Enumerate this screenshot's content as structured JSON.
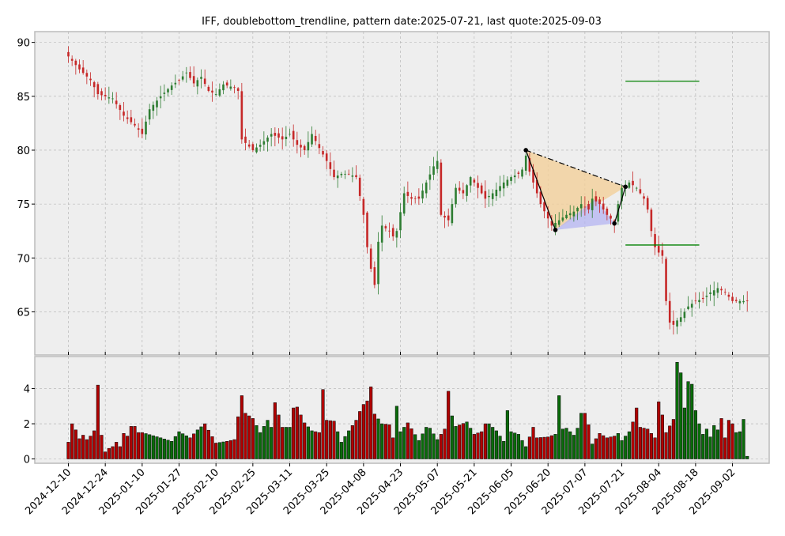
{
  "chart_data": {
    "type": "candlestick",
    "title": "IFF, doublebottom_trendline, pattern date:2025-07-21, last quote:2025-09-03",
    "colors": {
      "up": "#2e7d32",
      "down": "#c62828",
      "up_bar": "#0a6b0a",
      "down_bar": "#b00000",
      "panel_bg": "#eeeeee",
      "pattern_fill_1": "#f2cf9a",
      "pattern_fill_2": "#b4b4f2",
      "level_line": "#008000"
    },
    "price_axis": {
      "ylim": [
        61,
        91
      ],
      "ticks": [
        65,
        70,
        75,
        80,
        85,
        90
      ]
    },
    "volume_axis": {
      "ylim": [
        0,
        5.6
      ],
      "ticks": [
        0,
        2,
        4
      ]
    },
    "x_ticks": [
      "2024-12-10",
      "2024-12-24",
      "2025-01-10",
      "2025-01-27",
      "2025-02-10",
      "2025-02-25",
      "2025-03-11",
      "2025-03-25",
      "2025-04-08",
      "2025-04-23",
      "2025-05-07",
      "2025-05-21",
      "2025-06-05",
      "2025-06-20",
      "2025-07-07",
      "2025-07-21",
      "2025-08-04",
      "2025-08-18",
      "2025-09-02"
    ],
    "x_tick_index": [
      0,
      10,
      20,
      30,
      40,
      50,
      60,
      70,
      80,
      90,
      100,
      110,
      120,
      130,
      140,
      150,
      160,
      170,
      180
    ],
    "close_waypoints": [
      [
        0,
        88.7
      ],
      [
        3,
        87.5
      ],
      [
        6,
        86.5
      ],
      [
        8,
        85.2
      ],
      [
        10,
        85.0
      ],
      [
        12,
        84.8
      ],
      [
        15,
        83.2
      ],
      [
        18,
        82.3
      ],
      [
        20,
        81.5
      ],
      [
        22,
        83.8
      ],
      [
        25,
        85.0
      ],
      [
        28,
        86.0
      ],
      [
        30,
        86.5
      ],
      [
        32,
        87.2
      ],
      [
        34,
        86.2
      ],
      [
        36,
        86.8
      ],
      [
        38,
        85.5
      ],
      [
        40,
        85.2
      ],
      [
        42,
        86.1
      ],
      [
        45,
        85.8
      ],
      [
        46,
        85.5
      ],
      [
        47,
        81.0
      ],
      [
        50,
        80.0
      ],
      [
        52,
        80.5
      ],
      [
        55,
        81.5
      ],
      [
        58,
        81.0
      ],
      [
        60,
        81.5
      ],
      [
        62,
        80.5
      ],
      [
        64,
        80.0
      ],
      [
        66,
        81.5
      ],
      [
        68,
        80.2
      ],
      [
        70,
        79.0
      ],
      [
        72,
        77.5
      ],
      [
        74,
        77.8
      ],
      [
        76,
        77.8
      ],
      [
        78,
        77.5
      ],
      [
        80,
        74.0
      ],
      [
        81,
        71.0
      ],
      [
        82,
        69.0
      ],
      [
        83,
        67.5
      ],
      [
        84,
        71.5
      ],
      [
        85,
        73.0
      ],
      [
        87,
        72.5
      ],
      [
        88,
        72.0
      ],
      [
        89,
        72.5
      ],
      [
        91,
        76.0
      ],
      [
        93,
        75.5
      ],
      [
        95,
        75.5
      ],
      [
        97,
        77.0
      ],
      [
        99,
        78.5
      ],
      [
        100,
        79.0
      ],
      [
        101,
        74.0
      ],
      [
        103,
        73.5
      ],
      [
        105,
        76.5
      ],
      [
        107,
        76.0
      ],
      [
        109,
        77.5
      ],
      [
        111,
        76.5
      ],
      [
        113,
        75.5
      ],
      [
        115,
        76.0
      ],
      [
        118,
        77.0
      ],
      [
        120,
        77.5
      ],
      [
        122,
        77.8
      ],
      [
        123,
        78.2
      ],
      [
        124,
        79.5
      ],
      [
        125,
        78.0
      ],
      [
        127,
        76.0
      ],
      [
        128,
        75.0
      ],
      [
        131,
        73.0
      ],
      [
        133,
        73.5
      ],
      [
        135,
        74.0
      ],
      [
        137,
        74.3
      ],
      [
        139,
        75.0
      ],
      [
        141,
        74.5
      ],
      [
        142,
        75.5
      ],
      [
        144,
        75.0
      ],
      [
        146,
        74.0
      ],
      [
        148,
        73.3
      ],
      [
        149,
        75.0
      ],
      [
        150,
        76.5
      ],
      [
        152,
        77.0
      ],
      [
        154,
        76.5
      ],
      [
        156,
        75.5
      ],
      [
        157,
        74.5
      ],
      [
        158,
        72.5
      ],
      [
        159,
        71.0
      ],
      [
        160,
        70.5
      ],
      [
        161,
        70.2
      ],
      [
        162,
        66.0
      ],
      [
        163,
        64.0
      ],
      [
        164,
        63.8
      ],
      [
        165,
        64.2
      ],
      [
        166,
        64.5
      ],
      [
        167,
        65.0
      ],
      [
        168,
        65.5
      ],
      [
        170,
        66.0
      ],
      [
        172,
        66.2
      ],
      [
        174,
        66.8
      ],
      [
        176,
        67.2
      ],
      [
        178,
        66.8
      ],
      [
        180,
        66.0
      ]
    ],
    "volume_waypoints": [
      [
        0,
        0.95
      ],
      [
        1,
        2.0
      ],
      [
        2,
        1.65
      ],
      [
        3,
        1.15
      ],
      [
        4,
        1.35
      ],
      [
        5,
        1.1
      ],
      [
        6,
        1.3
      ],
      [
        7,
        1.6
      ],
      [
        8,
        4.2
      ],
      [
        9,
        1.35
      ],
      [
        10,
        0.4
      ],
      [
        11,
        0.6
      ],
      [
        12,
        0.7
      ],
      [
        13,
        0.95
      ],
      [
        14,
        0.7
      ],
      [
        15,
        1.45
      ],
      [
        16,
        1.3
      ],
      [
        17,
        1.85
      ],
      [
        18,
        1.85
      ],
      [
        19,
        1.5
      ],
      [
        20,
        1.5
      ],
      [
        25,
        1.2
      ],
      [
        28,
        1.0
      ],
      [
        30,
        1.55
      ],
      [
        33,
        1.2
      ],
      [
        35,
        1.65
      ],
      [
        37,
        2.0
      ],
      [
        40,
        0.9
      ],
      [
        43,
        1.0
      ],
      [
        45,
        1.1
      ],
      [
        46,
        2.4
      ],
      [
        47,
        3.6
      ],
      [
        48,
        2.6
      ],
      [
        50,
        2.3
      ],
      [
        52,
        1.5
      ],
      [
        54,
        2.2
      ],
      [
        55,
        1.8
      ],
      [
        56,
        3.2
      ],
      [
        58,
        1.8
      ],
      [
        60,
        1.8
      ],
      [
        61,
        2.9
      ],
      [
        62,
        2.95
      ],
      [
        64,
        2.05
      ],
      [
        66,
        1.6
      ],
      [
        68,
        1.5
      ],
      [
        69,
        3.95
      ],
      [
        70,
        2.2
      ],
      [
        72,
        2.15
      ],
      [
        74,
        0.95
      ],
      [
        76,
        1.6
      ],
      [
        78,
        2.2
      ],
      [
        79,
        2.7
      ],
      [
        80,
        3.1
      ],
      [
        81,
        3.3
      ],
      [
        82,
        4.1
      ],
      [
        83,
        2.55
      ],
      [
        85,
        2.0
      ],
      [
        87,
        1.95
      ],
      [
        88,
        1.2
      ],
      [
        89,
        3.0
      ],
      [
        90,
        1.55
      ],
      [
        92,
        2.05
      ],
      [
        95,
        1.05
      ],
      [
        97,
        1.8
      ],
      [
        98,
        1.75
      ],
      [
        100,
        1.1
      ],
      [
        102,
        1.7
      ],
      [
        103,
        3.85
      ],
      [
        104,
        2.45
      ],
      [
        105,
        1.85
      ],
      [
        108,
        2.1
      ],
      [
        110,
        1.4
      ],
      [
        112,
        1.55
      ],
      [
        113,
        2.0
      ],
      [
        114,
        2.0
      ],
      [
        116,
        1.6
      ],
      [
        118,
        1.0
      ],
      [
        119,
        2.75
      ],
      [
        120,
        1.55
      ],
      [
        122,
        1.4
      ],
      [
        124,
        0.7
      ],
      [
        126,
        1.8
      ],
      [
        127,
        1.2
      ],
      [
        130,
        1.25
      ],
      [
        132,
        1.4
      ],
      [
        133,
        3.6
      ],
      [
        134,
        1.7
      ],
      [
        135,
        1.75
      ],
      [
        137,
        1.35
      ],
      [
        138,
        1.75
      ],
      [
        139,
        2.6
      ],
      [
        140,
        2.6
      ],
      [
        141,
        1.95
      ],
      [
        142,
        0.85
      ],
      [
        143,
        1.15
      ],
      [
        144,
        1.45
      ],
      [
        146,
        1.2
      ],
      [
        148,
        1.3
      ],
      [
        149,
        1.45
      ],
      [
        150,
        1.05
      ],
      [
        152,
        1.55
      ],
      [
        153,
        2.1
      ],
      [
        154,
        2.9
      ],
      [
        155,
        1.8
      ],
      [
        157,
        1.7
      ],
      [
        159,
        1.2
      ],
      [
        160,
        3.25
      ],
      [
        161,
        2.5
      ],
      [
        162,
        1.5
      ],
      [
        164,
        2.25
      ],
      [
        165,
        5.5
      ],
      [
        166,
        4.9
      ],
      [
        167,
        2.9
      ],
      [
        168,
        4.4
      ],
      [
        169,
        4.25
      ],
      [
        170,
        2.75
      ],
      [
        171,
        2.0
      ],
      [
        172,
        1.4
      ],
      [
        173,
        1.7
      ],
      [
        174,
        1.25
      ],
      [
        175,
        1.9
      ],
      [
        176,
        1.65
      ],
      [
        177,
        2.3
      ],
      [
        178,
        1.2
      ],
      [
        179,
        2.2
      ],
      [
        180,
        2.0
      ],
      [
        181,
        1.5
      ],
      [
        182,
        1.55
      ],
      [
        183,
        2.25
      ],
      [
        184,
        0.15
      ]
    ],
    "pattern_points": [
      {
        "index": 124,
        "price": 80.0
      },
      {
        "index": 132,
        "price": 72.6
      },
      {
        "index": 148,
        "price": 73.2
      },
      {
        "index": 151,
        "price": 76.6
      }
    ],
    "pattern_inner_peak": {
      "index": 143,
      "price": 75.5
    },
    "levels": [
      {
        "price": 86.4,
        "from_index": 151,
        "to_index": 171
      },
      {
        "price": 71.2,
        "from_index": 151,
        "to_index": 171
      }
    ]
  }
}
